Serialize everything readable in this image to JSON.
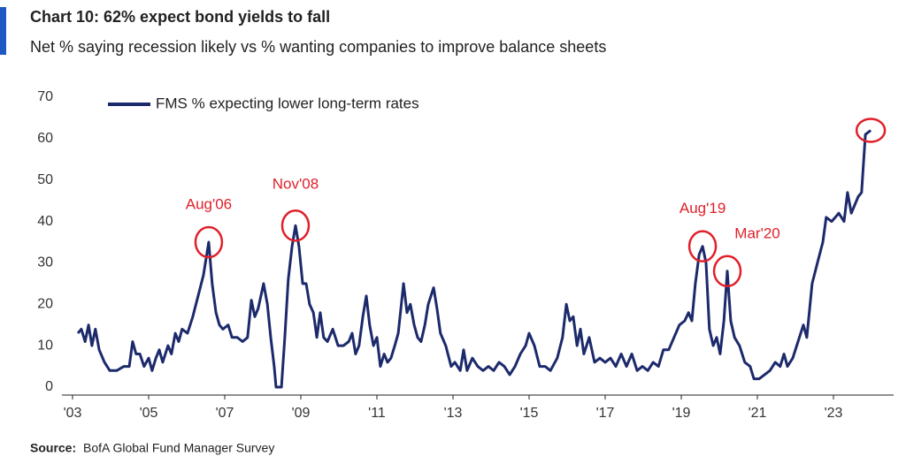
{
  "chart_data": {
    "type": "line",
    "title": "Chart 10: 62% expect bond yields to fall",
    "subtitle": "Net % saying recession likely vs % wanting companies to improve balance sheets",
    "source_label": "Source:",
    "source": "BofA Global Fund Manager Survey",
    "x": [
      2003.14,
      2003.23,
      2003.33,
      2003.42,
      2003.51,
      2003.6,
      2003.7,
      2003.84,
      2003.98,
      2004.16,
      2004.35,
      2004.49,
      2004.58,
      2004.67,
      2004.77,
      2004.88,
      2005.0,
      2005.09,
      2005.19,
      2005.28,
      2005.37,
      2005.51,
      2005.6,
      2005.7,
      2005.79,
      2005.88,
      2006.02,
      2006.16,
      2006.3,
      2006.44,
      2006.58,
      2006.67,
      2006.77,
      2006.86,
      2006.95,
      2007.09,
      2007.19,
      2007.33,
      2007.47,
      2007.6,
      2007.7,
      2007.79,
      2007.88,
      2008.02,
      2008.12,
      2008.21,
      2008.3,
      2008.35,
      2008.49,
      2008.58,
      2008.67,
      2008.77,
      2008.86,
      2008.95,
      2009.05,
      2009.14,
      2009.23,
      2009.33,
      2009.42,
      2009.51,
      2009.6,
      2009.7,
      2009.84,
      2009.98,
      2010.12,
      2010.26,
      2010.35,
      2010.44,
      2010.53,
      2010.63,
      2010.72,
      2010.81,
      2010.91,
      2011.0,
      2011.09,
      2011.19,
      2011.28,
      2011.37,
      2011.47,
      2011.56,
      2011.7,
      2011.79,
      2011.88,
      2011.98,
      2012.07,
      2012.16,
      2012.26,
      2012.35,
      2012.49,
      2012.58,
      2012.67,
      2012.81,
      2012.95,
      2013.05,
      2013.19,
      2013.28,
      2013.37,
      2013.51,
      2013.65,
      2013.79,
      2013.93,
      2014.07,
      2014.21,
      2014.35,
      2014.49,
      2014.63,
      2014.77,
      2014.91,
      2015.0,
      2015.14,
      2015.28,
      2015.42,
      2015.56,
      2015.74,
      2015.88,
      2015.98,
      2016.07,
      2016.16,
      2016.26,
      2016.35,
      2016.44,
      2016.58,
      2016.72,
      2016.86,
      2017.0,
      2017.14,
      2017.28,
      2017.42,
      2017.56,
      2017.7,
      2017.84,
      2017.98,
      2018.12,
      2018.26,
      2018.4,
      2018.53,
      2018.67,
      2018.81,
      2018.95,
      2019.09,
      2019.19,
      2019.28,
      2019.37,
      2019.47,
      2019.56,
      2019.65,
      2019.74,
      2019.84,
      2019.93,
      2020.02,
      2020.12,
      2020.21,
      2020.3,
      2020.4,
      2020.53,
      2020.67,
      2020.81,
      2020.91,
      2021.05,
      2021.19,
      2021.33,
      2021.47,
      2021.6,
      2021.7,
      2021.79,
      2021.93,
      2022.07,
      2022.21,
      2022.3,
      2022.44,
      2022.58,
      2022.72,
      2022.81,
      2022.95,
      2023.05,
      2023.14,
      2023.28,
      2023.37,
      2023.47,
      2023.56,
      2023.65,
      2023.74,
      2023.84,
      2023.98
    ],
    "series": [
      {
        "name": "FMS % expecting lower long-term rates",
        "color": "#1c2a6b",
        "values": [
          13,
          14,
          11,
          15,
          10,
          14,
          9,
          6,
          4,
          4,
          5,
          5,
          11,
          8,
          8,
          5,
          7,
          4,
          7,
          9,
          6,
          10,
          8,
          13,
          11,
          14,
          13,
          17,
          22,
          27,
          35,
          25,
          18,
          15,
          14,
          15,
          12,
          12,
          11,
          12,
          21,
          17,
          19,
          25,
          20,
          12,
          5,
          0,
          0,
          12,
          26,
          34,
          39,
          34,
          25,
          25,
          20,
          18,
          12,
          18,
          12,
          11,
          14,
          10,
          10,
          11,
          13,
          8,
          10,
          17,
          22,
          15,
          10,
          12,
          5,
          8,
          6,
          7,
          10,
          13,
          25,
          18,
          20,
          15,
          12,
          11,
          15,
          20,
          24,
          19,
          13,
          10,
          5,
          6,
          4,
          9,
          4,
          7,
          5,
          4,
          5,
          4,
          6,
          5,
          3,
          5,
          8,
          10,
          13,
          10,
          5,
          5,
          4,
          7,
          12,
          20,
          16,
          17,
          10,
          14,
          8,
          12,
          6,
          7,
          6,
          7,
          5,
          8,
          5,
          8,
          4,
          5,
          4,
          6,
          5,
          9,
          9,
          12,
          15,
          16,
          18,
          16,
          25,
          32,
          34,
          30,
          14,
          10,
          12,
          8,
          16,
          28,
          16,
          12,
          10,
          6,
          5,
          2,
          2,
          3,
          4,
          6,
          5,
          8,
          5,
          7,
          11,
          15,
          12,
          25,
          30,
          35,
          41,
          40,
          41,
          42,
          40,
          47,
          42,
          44,
          46,
          47,
          61,
          62
        ]
      }
    ],
    "annotations": [
      {
        "text": "Aug'06",
        "x": 2006.58,
        "y": 35
      },
      {
        "text": "Nov'08",
        "x": 2008.86,
        "y": 39
      },
      {
        "text": "Aug'19",
        "x": 2019.56,
        "y": 34
      },
      {
        "text": "Mar'20",
        "x": 2020.21,
        "y": 28
      }
    ],
    "xlim": [
      2003,
      2024.2
    ],
    "xticks": [
      {
        "value": 2003,
        "label": "'03"
      },
      {
        "value": 2005,
        "label": "'05"
      },
      {
        "value": 2007,
        "label": "'07"
      },
      {
        "value": 2009,
        "label": "'09"
      },
      {
        "value": 2011,
        "label": "'11"
      },
      {
        "value": 2013,
        "label": "'13"
      },
      {
        "value": 2015,
        "label": "'15"
      },
      {
        "value": 2017,
        "label": "'17"
      },
      {
        "value": 2019,
        "label": "'19"
      },
      {
        "value": 2021,
        "label": "'21"
      },
      {
        "value": 2023,
        "label": "'23"
      }
    ],
    "ylim": [
      0,
      70
    ],
    "yticks": [
      0,
      10,
      20,
      30,
      40,
      50,
      60,
      70
    ],
    "annotation_color": "#e0202a"
  }
}
